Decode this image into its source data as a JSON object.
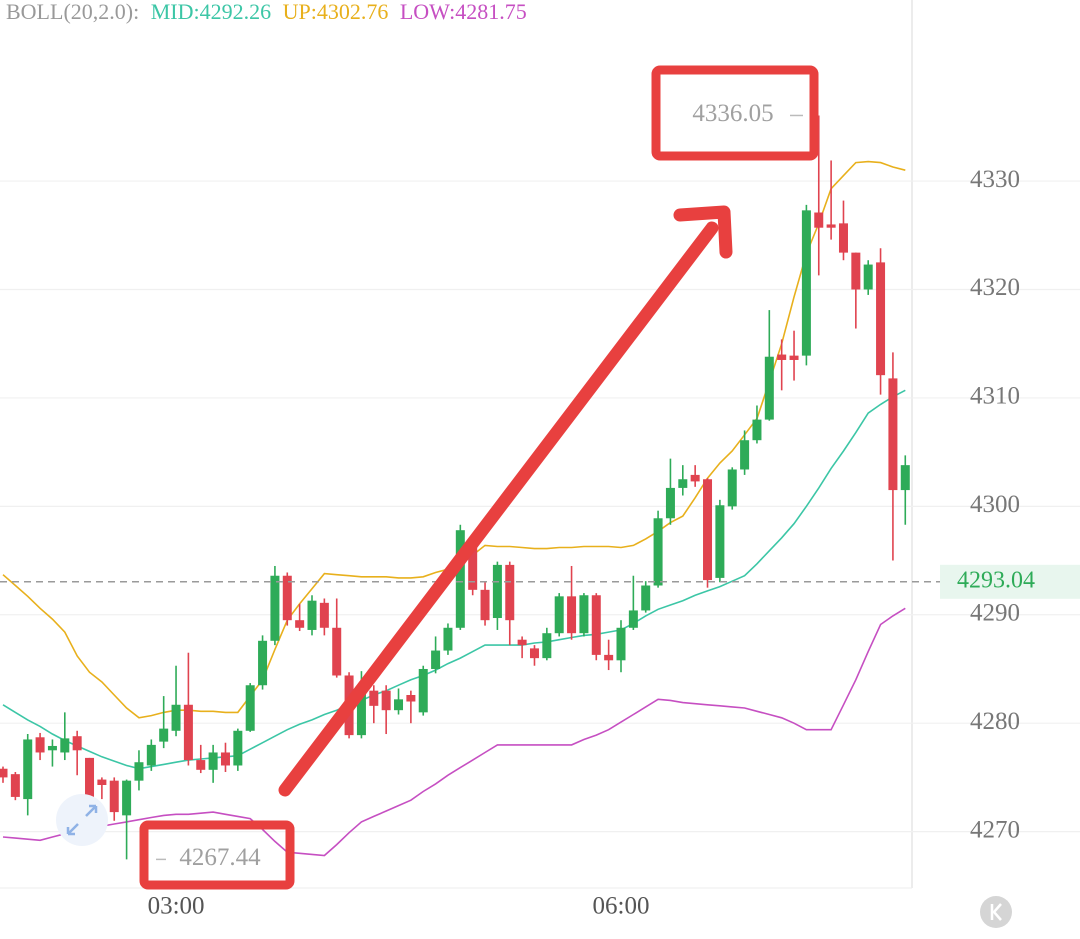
{
  "chart_data": {
    "type": "candlestick",
    "indicator": "BOLL(20,2.0):",
    "categories": [
      null,
      null,
      null,
      null,
      null,
      null,
      null,
      null,
      null,
      null,
      null,
      null,
      null,
      null,
      "03:00",
      null,
      null,
      null,
      null,
      null,
      null,
      null,
      null,
      null,
      null,
      null,
      null,
      null,
      null,
      null,
      null,
      null,
      null,
      null,
      null,
      null,
      null,
      null,
      null,
      null,
      null,
      null,
      null,
      null,
      null,
      null,
      null,
      null,
      null,
      null,
      "06:00",
      null,
      null,
      null,
      null,
      null,
      null,
      null,
      null,
      null,
      null,
      null,
      null,
      null,
      null,
      null,
      null,
      null,
      null,
      null,
      null,
      null,
      null,
      null
    ],
    "open": [
      4275.8,
      4275.3,
      4273,
      4278.7,
      4277.5,
      4277.3,
      4278.8,
      4276.8,
      4274.8,
      4274.7,
      4271.5,
      4274.7,
      4276.1,
      4278.3,
      4279.3,
      4281.7,
      4276.6,
      4275.7,
      4277.3,
      4276.1,
      4279.3,
      4283.5,
      4287.6,
      4293.6,
      4289.5,
      4288.6,
      4291.1,
      4288.8,
      4284.4,
      4278.9,
      4283,
      4283,
      4281.2,
      4282.6,
      4281,
      4285,
      4286.7,
      4288.8,
      4296.9,
      4292.3,
      4289.7,
      4294.6,
      4287.7,
      4286.9,
      4286,
      4288.3,
      4291.7,
      4288.3,
      4291.8,
      4286.3,
      4285.8,
      4288.8,
      4290.4,
      4292.7,
      4298.9,
      4301.7,
      4302.9,
      4302.5,
      4293.4,
      4300,
      4303.4,
      4306.1,
      4308,
      4314,
      4313.9,
      4313.9,
      4327.1,
      4326,
      4326.1,
      4323.4,
      4320,
      4322.5,
      4311.8,
      4301.5
    ],
    "high": [
      4276,
      4275.5,
      4279,
      4279.1,
      4278.5,
      4281,
      4279.3,
      4276.8,
      4275,
      4275,
      4274.8,
      4277.5,
      4278.5,
      4282.5,
      4285.3,
      4286.5,
      4278,
      4278,
      4278.2,
      4279.5,
      4283.7,
      4288.1,
      4294.5,
      4293.9,
      4291,
      4291.8,
      4291.5,
      4291.5,
      4284.7,
      4284.8,
      4283.5,
      4283.5,
      4283.2,
      4283,
      4285.3,
      4288,
      4289.2,
      4298.3,
      4297.3,
      4293,
      4294.9,
      4294.9,
      4288,
      4287.2,
      4288.8,
      4292,
      4294.5,
      4292,
      4292,
      4287.7,
      4289.5,
      4293.6,
      4293.1,
      4299.6,
      4304.4,
      4303.8,
      4303.8,
      4302.6,
      4300.6,
      4303.6,
      4307,
      4309.3,
      4318.1,
      4315.4,
      4316.2,
      4327.8,
      4336.05,
      4331.9,
      4328.2,
      4323.4,
      4322.7,
      4323.8,
      4314.2,
      4304.7
    ],
    "low": [
      4274.5,
      4272.9,
      4271.5,
      4276.6,
      4276,
      4276.6,
      4275.2,
      4272.9,
      4273,
      4271,
      4267.44,
      4273.8,
      4275.6,
      4277.7,
      4278.8,
      4276.1,
      4275.4,
      4274.5,
      4275.5,
      4275.6,
      4279.2,
      4283.1,
      4287.2,
      4289,
      4288.5,
      4288.1,
      4288.1,
      4284.2,
      4278.6,
      4278.6,
      4280,
      4279,
      4280.8,
      4280,
      4280.7,
      4284.6,
      4286.3,
      4288.6,
      4291.8,
      4289,
      4288.6,
      4287.2,
      4286,
      4285.3,
      4285.8,
      4288,
      4287.7,
      4288,
      4285.8,
      4284.9,
      4284.7,
      4288.6,
      4290.2,
      4292.5,
      4298.3,
      4301,
      4301.8,
      4292.5,
      4293,
      4299.7,
      4302.9,
      4305.8,
      4307.9,
      4310.7,
      4311.6,
      4313,
      4321.3,
      4324.6,
      4322.7,
      4316.4,
      4319.5,
      4310.3,
      4295,
      4298.3
    ],
    "close": [
      4275,
      4273.2,
      4278.5,
      4277.3,
      4277.9,
      4278.6,
      4277.5,
      4273.2,
      4274.3,
      4271.8,
      4274.7,
      4276.4,
      4278,
      4279.5,
      4281.7,
      4276.6,
      4275.7,
      4277.3,
      4276.1,
      4279.3,
      4283.5,
      4287.6,
      4293.6,
      4289.5,
      4288.8,
      4291.3,
      4288.8,
      4284.4,
      4278.9,
      4283,
      4281.6,
      4281.2,
      4282.2,
      4282,
      4285,
      4286.7,
      4288.8,
      4297.8,
      4292.3,
      4289.5,
      4294.6,
      4289.5,
      4287.2,
      4286,
      4288.3,
      4291.7,
      4288.3,
      4291.8,
      4286.3,
      4285.8,
      4288.8,
      4290.4,
      4292.7,
      4298.9,
      4301.7,
      4302.5,
      4302.3,
      4293.2,
      4300.1,
      4303.4,
      4306.1,
      4308,
      4313.8,
      4313.5,
      4313.5,
      4327.3,
      4325.7,
      4325.7,
      4323.4,
      4320,
      4322.3,
      4312.1,
      4301.5,
      4303.8
    ],
    "up_color": "#2eab58",
    "down_color": "#e0434f",
    "series": [
      {
        "label": "MID:4292.26",
        "color": "#3cc6a6",
        "values": [
          4281.7,
          4281.0,
          4280.3,
          4279.7,
          4279.0,
          4278.4,
          4277.9,
          4277.4,
          4276.9,
          4276.5,
          4276.1,
          4275.8,
          4276.0,
          4276.2,
          4276.4,
          4276.6,
          4276.7,
          4276.8,
          4276.9,
          4277.0,
          4277.6,
          4278.2,
          4278.8,
          4279.4,
          4279.9,
          4280.3,
          4280.8,
          4281.2,
          4281.7,
          4282.1,
          4282.6,
          4283.0,
          4283.5,
          4284.0,
          4284.4,
          4284.9,
          4285.5,
          4286.0,
          4286.6,
          4287.2,
          4287.2,
          4287.2,
          4287.2,
          4287.4,
          4287.5,
          4287.7,
          4287.9,
          4288.1,
          4288.2,
          4288.4,
          4288.6,
          4289.2,
          4289.9,
          4290.5,
          4290.9,
          4291.3,
          4291.8,
          4292.2,
          4292.6,
          4293.1,
          4293.6,
          4294.7,
          4295.9,
          4297.1,
          4298.4,
          4300.0,
          4301.7,
          4303.5,
          4305.1,
          4306.8,
          4308.6,
          4309.4,
          4310.1,
          4310.7
        ]
      },
      {
        "label": "UP:4302.76",
        "color": "#e8b01c",
        "values": [
          4293.7,
          4292.7,
          4291.7,
          4290.6,
          4289.6,
          4288.4,
          4286.2,
          4284.7,
          4283.8,
          4282.6,
          4281.4,
          4280.5,
          4280.7,
          4281.0,
          4281.2,
          4281.2,
          4281.1,
          4281.1,
          4281.0,
          4281.0,
          4282.5,
          4284.0,
          4286.8,
          4289.5,
          4291.0,
          4292.4,
          4293.8,
          4293.7,
          4293.6,
          4293.5,
          4293.5,
          4293.5,
          4293.4,
          4293.4,
          4293.5,
          4293.9,
          4294.2,
          4294.6,
          4295.5,
          4296.4,
          4296.3,
          4296.3,
          4296.2,
          4296.1,
          4296.1,
          4296.2,
          4296.2,
          4296.3,
          4296.3,
          4296.3,
          4296.2,
          4296.4,
          4297.0,
          4297.7,
          4298.5,
          4299.1,
          4300.8,
          4302.6,
          4304.0,
          4305.1,
          4306.6,
          4308.1,
          4311.5,
          4315.0,
          4319.3,
          4323.3,
          4326.1,
          4329.3,
          4330.5,
          4331.7,
          4331.8,
          4331.7,
          4331.3,
          4331.0
        ]
      },
      {
        "label": "LOW:4281.75",
        "color": "#c64fc2",
        "values": [
          4269.5,
          4269.4,
          4269.3,
          4269.2,
          4269.5,
          4269.8,
          4270.0,
          4270.3,
          4270.5,
          4270.7,
          4270.9,
          4271.1,
          4271.3,
          4271.5,
          4271.6,
          4271.6,
          4271.7,
          4271.8,
          4271.6,
          4271.4,
          4271.2,
          4270.2,
          4269.1,
          4268.1,
          4268.0,
          4267.9,
          4267.8,
          4268.8,
          4269.9,
          4270.9,
          4271.4,
          4271.9,
          4272.4,
          4272.9,
          4273.7,
          4274.4,
          4275.2,
          4275.9,
          4276.6,
          4277.3,
          4278.0,
          4278.0,
          4278.0,
          4278.0,
          4278.0,
          4278.0,
          4278.0,
          4278.5,
          4278.9,
          4279.4,
          4280.1,
          4280.8,
          4281.5,
          4282.2,
          4282.1,
          4281.9,
          4281.8,
          4281.7,
          4281.6,
          4281.5,
          4281.4,
          4281.1,
          4280.8,
          4280.5,
          4280.0,
          4279.4,
          4279.4,
          4279.4,
          4281.7,
          4284.0,
          4286.6,
          4289.1,
          4289.9,
          4290.6
        ]
      }
    ],
    "max_label": 4336.05,
    "min_label": 4267.44,
    "last_price": 4293.04,
    "ylim": [
      4264.8,
      4346.7
    ],
    "yticks": [
      4270,
      4280,
      4290,
      4300,
      4310,
      4320,
      4330
    ],
    "grid": true
  }
}
